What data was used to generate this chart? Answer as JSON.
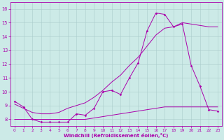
{
  "xlabel": "Windchill (Refroidissement éolien,°C)",
  "background_color": "#cceae7",
  "line_color": "#aa00aa",
  "xlim": [
    -0.5,
    23.5
  ],
  "ylim": [
    7.5,
    16.5
  ],
  "x_ticks": [
    0,
    1,
    2,
    3,
    4,
    5,
    6,
    7,
    8,
    9,
    10,
    11,
    12,
    13,
    14,
    15,
    16,
    17,
    18,
    19,
    20,
    21,
    22,
    23
  ],
  "y_ticks": [
    8,
    9,
    10,
    11,
    12,
    13,
    14,
    15,
    16
  ],
  "line1_x": [
    0,
    1,
    2,
    3,
    4,
    5,
    6,
    7,
    8,
    9,
    10,
    11,
    12,
    13,
    14,
    15,
    16,
    17,
    18,
    19,
    20,
    21,
    22,
    23
  ],
  "line1_y": [
    9.3,
    8.9,
    8.0,
    7.8,
    7.8,
    7.8,
    7.8,
    8.4,
    8.3,
    8.8,
    10.0,
    10.1,
    9.8,
    11.0,
    12.1,
    14.4,
    15.7,
    15.6,
    14.7,
    14.9,
    11.9,
    10.4,
    8.7,
    8.6
  ],
  "line2_x": [
    0,
    1,
    2,
    3,
    4,
    5,
    6,
    7,
    8,
    9,
    10,
    11,
    12,
    13,
    14,
    15,
    16,
    17,
    18,
    19,
    20,
    21,
    22,
    23
  ],
  "line2_y": [
    9.1,
    8.8,
    8.5,
    8.4,
    8.4,
    8.5,
    8.8,
    9.0,
    9.2,
    9.6,
    10.1,
    10.7,
    11.2,
    11.9,
    12.5,
    13.3,
    14.1,
    14.6,
    14.7,
    15.0,
    14.9,
    14.8,
    14.7,
    14.7
  ],
  "line3_x": [
    0,
    1,
    2,
    3,
    4,
    5,
    6,
    7,
    8,
    9,
    10,
    11,
    12,
    13,
    14,
    15,
    16,
    17,
    18,
    19,
    20,
    21,
    22,
    23
  ],
  "line3_y": [
    8.0,
    8.0,
    8.0,
    8.0,
    8.0,
    8.0,
    8.0,
    8.0,
    8.0,
    8.1,
    8.2,
    8.3,
    8.4,
    8.5,
    8.6,
    8.7,
    8.8,
    8.9,
    8.9,
    8.9,
    8.9,
    8.9,
    8.9,
    8.9
  ]
}
